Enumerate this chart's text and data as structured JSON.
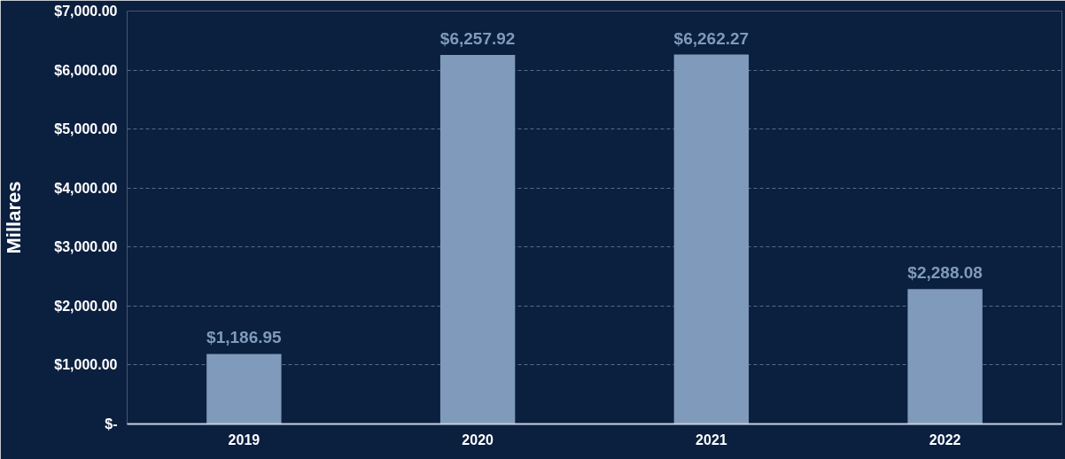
{
  "chart_data": {
    "type": "bar",
    "ylabel": "Millares",
    "categories": [
      "2019",
      "2020",
      "2021",
      "2022"
    ],
    "values": [
      1186.95,
      6257.92,
      6262.27,
      2288.08
    ],
    "value_labels": [
      "$1,186.95",
      "$6,257.92",
      "$6,262.27",
      "$2,288.08"
    ],
    "color": "#7f9aba",
    "ylim": [
      0,
      7000
    ],
    "yticks": [
      {
        "value": 0,
        "label": "$-"
      },
      {
        "value": 1000,
        "label": "$1,000.00"
      },
      {
        "value": 2000,
        "label": "$2,000.00"
      },
      {
        "value": 3000,
        "label": "$3,000.00"
      },
      {
        "value": 4000,
        "label": "$4,000.00"
      },
      {
        "value": 5000,
        "label": "$5,000.00"
      },
      {
        "value": 6000,
        "label": "$6,000.00"
      },
      {
        "value": 7000,
        "label": "$7,000.00"
      }
    ],
    "grid": "y"
  }
}
